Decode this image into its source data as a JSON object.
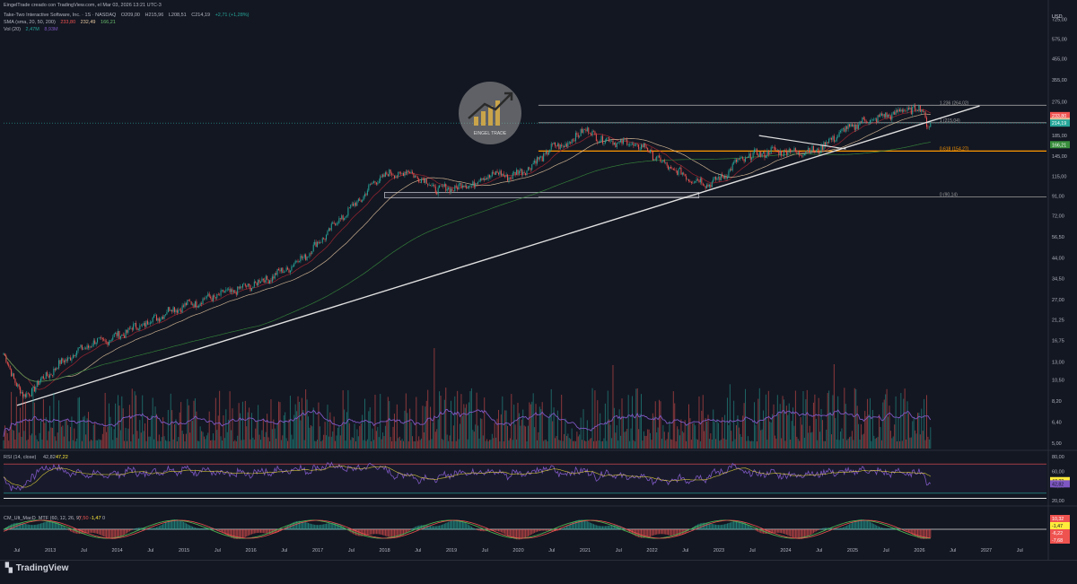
{
  "header": {
    "attribution": "EingelTrade creado con TradingView.com, el Mar 03, 2026 13:21 UTC-3",
    "symbol_line": "Take-Two Interactive Software, Inc. · 1S · NASDAQ",
    "ohlc": {
      "open": "O209,00",
      "high": "H215,96",
      "low": "L208,51",
      "close": "C214,19",
      "change": "+2,71 (+1,28%)"
    },
    "sma_label": "SMA (sma, 20, 50, 200)",
    "sma_values": [
      "233,80",
      "232,49",
      "166,21"
    ],
    "vol_label": "Vol (20)",
    "vol_values": [
      "2,47M",
      "8,93M"
    ]
  },
  "currency": "USD",
  "watermark": "EINGEL TRADE",
  "footer": {
    "brand": "TradingView"
  },
  "colors": {
    "background": "#131722",
    "up": "#26a69a",
    "down": "#ef5350",
    "sma20": "#b22833",
    "sma50": "#e8c8a0",
    "sma200": "#388e3c",
    "fib": "#e0e0e0",
    "fib618": "#ff9800",
    "rsi": "#7e57c2",
    "volume_ma": "#7e57c2"
  },
  "chart_data": [
    {
      "type": "candlestick",
      "pane": "price",
      "scale": "log",
      "ylim": [
        4.7,
        800
      ],
      "y_ticks": [
        "725,00",
        "575,00",
        "455,00",
        "355,00",
        "275,00",
        "215,00",
        "185,00",
        "145,00",
        "115,00",
        "91,00",
        "72,00",
        "56,50",
        "44,00",
        "34,50",
        "27,00",
        "21,25",
        "16,75",
        "13,00",
        "10,50",
        "8,20",
        "6,40",
        "5,00"
      ],
      "x_ticks": [
        "Jul",
        "2013",
        "Jul",
        "2014",
        "Jul",
        "2015",
        "Jul",
        "2016",
        "Jul",
        "2017",
        "Jul",
        "2018",
        "Jul",
        "2019",
        "Jul",
        "2020",
        "Jul",
        "2021",
        "Jul",
        "2022",
        "Jul",
        "2023",
        "Jul",
        "2024",
        "Jul",
        "2025",
        "Jul",
        "2026",
        "Jul",
        "2027",
        "Jul"
      ],
      "x_range": [
        2012.3,
        2027.9
      ],
      "series": [
        {
          "name": "close (approx. weekly path)",
          "points": [
            [
              2012.3,
              14
            ],
            [
              2012.6,
              8.5
            ],
            [
              2012.8,
              10
            ],
            [
              2013.0,
              11.5
            ],
            [
              2013.3,
              14
            ],
            [
              2013.6,
              16
            ],
            [
              2013.9,
              17
            ],
            [
              2014.2,
              19
            ],
            [
              2014.5,
              21
            ],
            [
              2014.8,
              24
            ],
            [
              2015.0,
              25
            ],
            [
              2015.3,
              27
            ],
            [
              2015.6,
              29
            ],
            [
              2015.9,
              31
            ],
            [
              2016.2,
              34
            ],
            [
              2016.5,
              38
            ],
            [
              2016.8,
              45
            ],
            [
              2017.0,
              52
            ],
            [
              2017.3,
              68
            ],
            [
              2017.6,
              85
            ],
            [
              2017.9,
              112
            ],
            [
              2018.1,
              118
            ],
            [
              2018.4,
              120
            ],
            [
              2018.6,
              108
            ],
            [
              2018.8,
              98
            ],
            [
              2019.0,
              100
            ],
            [
              2019.3,
              105
            ],
            [
              2019.6,
              118
            ],
            [
              2019.9,
              115
            ],
            [
              2020.2,
              130
            ],
            [
              2020.5,
              160
            ],
            [
              2020.8,
              172
            ],
            [
              2020.95,
              200
            ],
            [
              2021.3,
              175
            ],
            [
              2021.6,
              170
            ],
            [
              2021.9,
              160
            ],
            [
              2022.2,
              130
            ],
            [
              2022.5,
              115
            ],
            [
              2022.8,
              105
            ],
            [
              2023.0,
              110
            ],
            [
              2023.3,
              138
            ],
            [
              2023.6,
              150
            ],
            [
              2023.9,
              155
            ],
            [
              2024.2,
              152
            ],
            [
              2024.5,
              158
            ],
            [
              2024.8,
              190
            ],
            [
              2025.1,
              215
            ],
            [
              2025.4,
              228
            ],
            [
              2025.7,
              245
            ],
            [
              2025.9,
              255
            ],
            [
              2026.05,
              248
            ],
            [
              2026.12,
              212
            ],
            [
              2026.17,
              214.19
            ]
          ]
        }
      ],
      "sma_values": {
        "sma20": 233.8,
        "sma50": 232.49,
        "sma200": 166.21
      },
      "price_labels": [
        {
          "value": "233,80",
          "color": "#ef5350"
        },
        {
          "value": "232,49",
          "color": "#e8c8a0"
        },
        {
          "value": "214,19",
          "color": "#26a69a"
        },
        {
          "value": "166,21",
          "color": "#388e3c"
        }
      ],
      "fibonacci": {
        "levels": [
          {
            "ratio": "1,236",
            "price": "(264,02)",
            "value": 264.02
          },
          {
            "ratio": "1",
            "price": "(215,04)",
            "value": 215.04
          },
          {
            "ratio": "0,618",
            "price": "(154,27)",
            "value": 154.27
          },
          {
            "ratio": "0",
            "price": "(90,14)",
            "value": 90.14
          }
        ]
      },
      "trendline": {
        "from": [
          2012.5,
          7.8
        ],
        "to": [
          2026.9,
          262
        ]
      },
      "support_box": {
        "x": [
          2018.0,
          2022.7
        ],
        "y": [
          89,
          95
        ]
      }
    },
    {
      "type": "bar",
      "pane": "volume",
      "series": [
        {
          "name": "Vol (20)",
          "ma_value": "8,93M"
        }
      ]
    },
    {
      "type": "line",
      "pane": "rsi",
      "title": "RSI (14, close)",
      "values_label": [
        "42,82",
        "47,22"
      ],
      "levels": [
        70,
        30
      ],
      "y_ticks": [
        "80,00",
        "60,00",
        "40,00",
        "20,00"
      ],
      "ylim": [
        15,
        85
      ],
      "current": {
        "rsi": 42.82,
        "ma": 47.22
      }
    },
    {
      "type": "line",
      "pane": "macd",
      "title": "CM_Ult_MacD_MTF (60, 12, 26, 9)",
      "values_label": [
        "-7,50",
        "-1,47",
        "0"
      ],
      "right_labels": [
        {
          "value": "10,32",
          "color": "#ef5350"
        },
        {
          "value": "-1,47",
          "color": "#ffeb3b"
        },
        {
          "value": "-6,22",
          "color": "#ef5350"
        },
        {
          "value": "-7,68",
          "color": "#ef5350"
        }
      ]
    }
  ]
}
